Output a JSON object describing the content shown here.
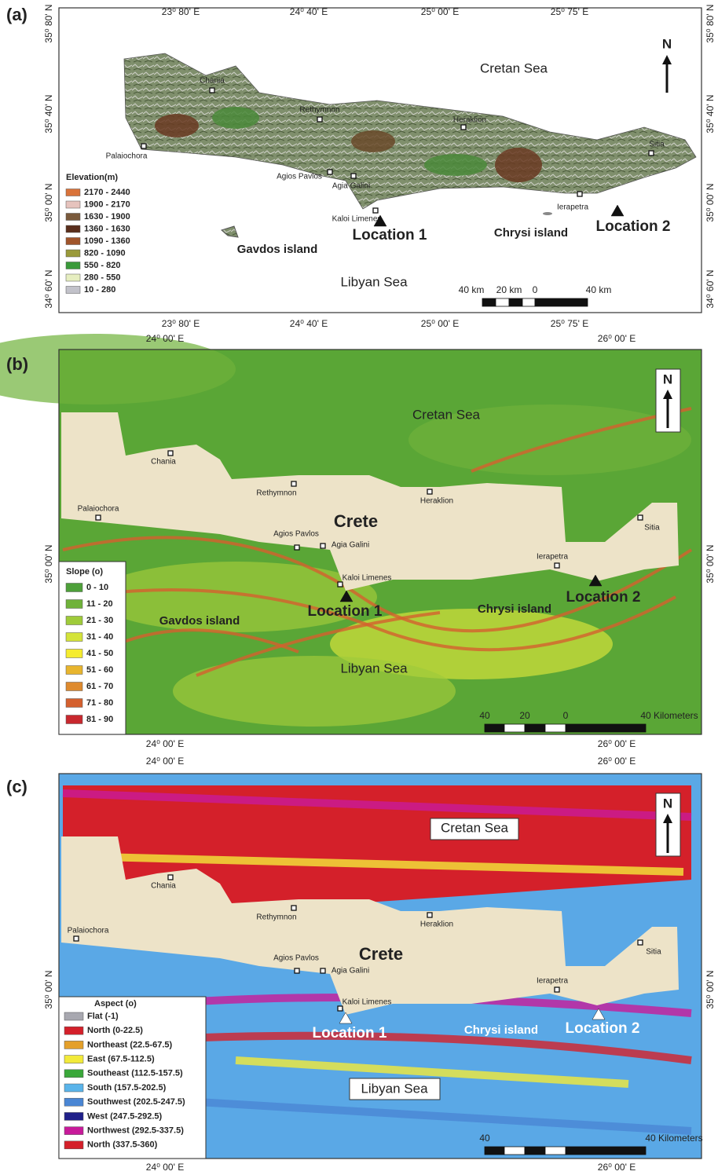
{
  "panels": [
    {
      "label": "(a)",
      "top_ticks": [
        "23⁰ 80' E",
        "24⁰ 40' E",
        "25⁰ 00' E",
        "25⁰ 75' E"
      ],
      "bottom_ticks": [
        "23⁰ 80' E",
        "24⁰ 40' E",
        "25⁰ 00' E",
        "25⁰ 75' E"
      ],
      "left_ticks": [
        "35⁰ 80' N",
        "35⁰ 40' N",
        "35⁰ 00' N",
        "34⁰ 60' N"
      ],
      "right_ticks": [
        "35⁰ 80' N",
        "35⁰ 40' N",
        "35⁰ 00' N",
        "34⁰ 60' N"
      ],
      "places": [
        "Chania",
        "Rethymnon",
        "Heraklion",
        "Palaiochora",
        "Sitia",
        "Agios Pavlos",
        "Agia Galini",
        "Kaloi Limenes",
        "Ierapetra"
      ],
      "labels": [
        "Cretan Sea",
        "Libyan Sea",
        "Gavdos island",
        "Chrysi island",
        "Location 1",
        "Location 2"
      ],
      "north": "N",
      "legend": {
        "title": "Elevation(m)",
        "items": [
          {
            "label": "2170 - 2440",
            "color": "#d9733a"
          },
          {
            "label": "1900 - 2170",
            "color": "#e6c3bd"
          },
          {
            "label": "1630 - 1900",
            "color": "#7a5a3c"
          },
          {
            "label": "1360 - 1630",
            "color": "#5a2e1c"
          },
          {
            "label": "1090 - 1360",
            "color": "#a0542a"
          },
          {
            "label": "820 - 1090",
            "color": "#9a9a3a"
          },
          {
            "label": "550 - 820",
            "color": "#3a9a3a"
          },
          {
            "label": "280 - 550",
            "color": "#e6eec0"
          },
          {
            "label": "10 - 280",
            "color": "#c2c2ca"
          }
        ]
      },
      "scale": [
        "40 km",
        "20 km",
        "0",
        "40 km"
      ]
    },
    {
      "label": "(b)",
      "top_ticks": [
        "24⁰ 00' E",
        "26⁰ 00' E"
      ],
      "bottom_ticks": [
        "24⁰ 00' E",
        "26⁰ 00' E"
      ],
      "left_ticks": [
        "35⁰ 00' N"
      ],
      "right_ticks": [
        "35⁰ 00' N"
      ],
      "places": [
        "Chania",
        "Rethymnon",
        "Heraklion",
        "Palaiochora",
        "Sitia",
        "Agios Pavlos",
        "Agia Galini",
        "Kaloi Limenes",
        "Ierapetra"
      ],
      "labels": [
        "Crete",
        "Cretan Sea",
        "Libyan Sea",
        "Gavdos island",
        "Chrysi island",
        "Location 1",
        "Location 2"
      ],
      "north": "N",
      "legend": {
        "title": "Slope (o)",
        "items": [
          {
            "label": "0 - 10",
            "color": "#4ea03a"
          },
          {
            "label": "11 - 20",
            "color": "#6fb23a"
          },
          {
            "label": "21 - 30",
            "color": "#9fcb3a"
          },
          {
            "label": "31 - 40",
            "color": "#d4e33a"
          },
          {
            "label": "41 - 50",
            "color": "#f5ec2e"
          },
          {
            "label": "51 - 60",
            "color": "#e8b52e"
          },
          {
            "label": "61 - 70",
            "color": "#de8a2e"
          },
          {
            "label": "71 - 80",
            "color": "#d4602e"
          },
          {
            "label": "81 - 90",
            "color": "#c8282e"
          }
        ]
      },
      "scale": [
        "40",
        "20",
        "0",
        "40 Kilometers"
      ]
    },
    {
      "label": "(c)",
      "top_ticks": [
        "24⁰ 00' E",
        "26⁰ 00' E"
      ],
      "bottom_ticks": [
        "24⁰ 00' E",
        "26⁰ 00' E"
      ],
      "left_ticks": [
        "35⁰ 00' N"
      ],
      "right_ticks": [
        "35⁰ 00' N"
      ],
      "places": [
        "Chania",
        "Rethymnon",
        "Heraklion",
        "Palaiochora",
        "Sitia",
        "Agios Pavlos",
        "Agia Galini",
        "Kaloi Limenes",
        "Ierapetra"
      ],
      "labels": [
        "Crete",
        "Cretan Sea",
        "Libyan Sea",
        "Chrysi island",
        "Location 1",
        "Location 2"
      ],
      "north": "N",
      "legend": {
        "title": "Aspect (o)",
        "items": [
          {
            "label": "Flat (-1)",
            "color": "#a8a8b0"
          },
          {
            "label": "North (0-22.5)",
            "color": "#d4202a"
          },
          {
            "label": "Northeast (22.5-67.5)",
            "color": "#e4a02a"
          },
          {
            "label": "East (67.5-112.5)",
            "color": "#f2ea3a"
          },
          {
            "label": "Southeast (112.5-157.5)",
            "color": "#3aa83a"
          },
          {
            "label": "South (157.5-202.5)",
            "color": "#5ab4ea"
          },
          {
            "label": "Southwest (202.5-247.5)",
            "color": "#4a86d4"
          },
          {
            "label": "West (247.5-292.5)",
            "color": "#20208a"
          },
          {
            "label": "Northwest (292.5-337.5)",
            "color": "#c81a9a"
          },
          {
            "label": "North (337.5-360)",
            "color": "#d4202a"
          }
        ]
      },
      "scale": [
        "40",
        "40 Kilometers"
      ]
    }
  ]
}
